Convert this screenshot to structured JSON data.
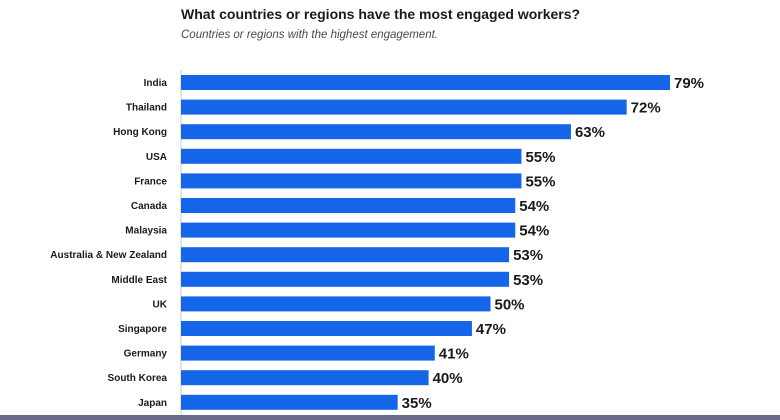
{
  "chart_data": {
    "type": "bar",
    "orientation": "horizontal",
    "title": "What countries or regions have the most engaged workers?",
    "subtitle": "Countries or regions with the highest engagement.",
    "categories": [
      "India",
      "Thailand",
      "Hong Kong",
      "USA",
      "France",
      "Canada",
      "Malaysia",
      "Australia & New Zealand",
      "Middle East",
      "UK",
      "Singapore",
      "Germany",
      "South Korea",
      "Japan"
    ],
    "values": [
      79,
      72,
      63,
      55,
      55,
      54,
      54,
      53,
      53,
      50,
      47,
      41,
      40,
      35
    ],
    "value_labels": [
      "79%",
      "72%",
      "63%",
      "55%",
      "55%",
      "54%",
      "54%",
      "53%",
      "53%",
      "50%",
      "47%",
      "41%",
      "40%",
      "35%"
    ],
    "xlim": [
      0,
      79
    ],
    "bar_color": "#1565e8",
    "grid": false,
    "legend": "none"
  }
}
